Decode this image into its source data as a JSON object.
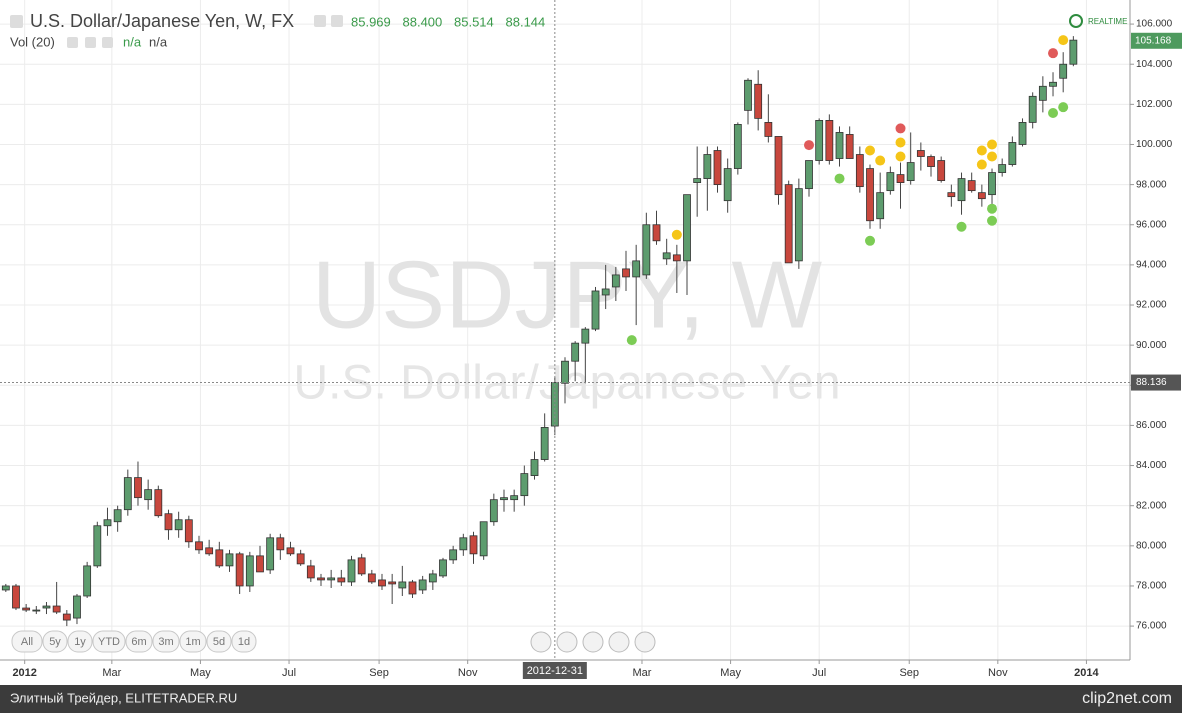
{
  "chart_data": {
    "type": "candlestick",
    "title": "U.S. Dollar/Japanese Yen, W, FX",
    "ohlc_labels": [
      "85.969",
      "88.400",
      "85.514",
      "88.144"
    ],
    "indicator": "Vol (20)",
    "indicator_values": [
      "n/a",
      "n/a"
    ],
    "watermark": "USDJPY, W",
    "watermark_subtitle": "U.S. Dollar/Japanese Yen",
    "realtime_label": "REALTIME",
    "range_buttons": [
      "All",
      "5y",
      "1y",
      "YTD",
      "6m",
      "3m",
      "1m",
      "5d",
      "1d"
    ],
    "footer_left": "Элитный Трейдер, ELITETRADER.RU",
    "footer_right": "clip2net.com",
    "up_color": "#5d9c6e",
    "down_color": "#c8473d",
    "grid": true,
    "xlim": [
      "2011-12-15",
      "2014-01-31"
    ],
    "ylim": [
      74.31,
      107.2
    ],
    "yticks": [
      {
        "value": 76,
        "label": "76.000"
      },
      {
        "value": 78,
        "label": "78.000"
      },
      {
        "value": 80,
        "label": "80.000"
      },
      {
        "value": 82,
        "label": "82.000"
      },
      {
        "value": 84,
        "label": "84.000"
      },
      {
        "value": 86,
        "label": "86.000"
      },
      {
        "value": 88,
        "label": "88.000"
      },
      {
        "value": 90,
        "label": "90.000"
      },
      {
        "value": 92,
        "label": "92.000"
      },
      {
        "value": 94,
        "label": "94.000"
      },
      {
        "value": 96,
        "label": "96.000"
      },
      {
        "value": 98,
        "label": "98.000"
      },
      {
        "value": 100,
        "label": "100.000"
      },
      {
        "value": 102,
        "label": "102.000"
      },
      {
        "value": 104,
        "label": "104.000"
      },
      {
        "value": 106,
        "label": "106.000"
      }
    ],
    "xticks": [
      {
        "value": "2012-01-01",
        "label": "2012"
      },
      {
        "value": "2012-03-01",
        "label": "Mar"
      },
      {
        "value": "2012-05-01",
        "label": "May"
      },
      {
        "value": "2012-07-01",
        "label": "Jul"
      },
      {
        "value": "2012-09-01",
        "label": "Sep"
      },
      {
        "value": "2012-11-01",
        "label": "Nov"
      },
      {
        "value": "2013-03-01",
        "label": "Mar"
      },
      {
        "value": "2013-05-01",
        "label": "May"
      },
      {
        "value": "2013-07-01",
        "label": "Jul"
      },
      {
        "value": "2013-09-01",
        "label": "Sep"
      },
      {
        "value": "2013-11-01",
        "label": "Nov"
      },
      {
        "value": "2014-01-01",
        "label": "2014"
      }
    ],
    "crosshair": {
      "date": "2012-12-31",
      "price": 88.136
    },
    "last_price": 105.168,
    "x": [
      "2011-12-19",
      "2011-12-26",
      "2012-01-02",
      "2012-01-09",
      "2012-01-16",
      "2012-01-23",
      "2012-01-30",
      "2012-02-06",
      "2012-02-13",
      "2012-02-20",
      "2012-02-27",
      "2012-03-05",
      "2012-03-12",
      "2012-03-19",
      "2012-03-26",
      "2012-04-02",
      "2012-04-09",
      "2012-04-16",
      "2012-04-23",
      "2012-04-30",
      "2012-05-07",
      "2012-05-14",
      "2012-05-21",
      "2012-05-28",
      "2012-06-04",
      "2012-06-11",
      "2012-06-18",
      "2012-06-25",
      "2012-07-02",
      "2012-07-09",
      "2012-07-16",
      "2012-07-23",
      "2012-07-30",
      "2012-08-06",
      "2012-08-13",
      "2012-08-20",
      "2012-08-27",
      "2012-09-03",
      "2012-09-10",
      "2012-09-17",
      "2012-09-24",
      "2012-10-01",
      "2012-10-08",
      "2012-10-15",
      "2012-10-22",
      "2012-10-29",
      "2012-11-05",
      "2012-11-12",
      "2012-11-19",
      "2012-11-26",
      "2012-12-03",
      "2012-12-10",
      "2012-12-17",
      "2012-12-24",
      "2012-12-31",
      "2013-01-07",
      "2013-01-14",
      "2013-01-21",
      "2013-01-28",
      "2013-02-04",
      "2013-02-11",
      "2013-02-18",
      "2013-02-25",
      "2013-03-04",
      "2013-03-11",
      "2013-03-18",
      "2013-03-25",
      "2013-04-01",
      "2013-04-08",
      "2013-04-15",
      "2013-04-22",
      "2013-04-29",
      "2013-05-06",
      "2013-05-13",
      "2013-05-20",
      "2013-05-27",
      "2013-06-03",
      "2013-06-10",
      "2013-06-17",
      "2013-06-24",
      "2013-07-01",
      "2013-07-08",
      "2013-07-15",
      "2013-07-22",
      "2013-07-29",
      "2013-08-05",
      "2013-08-12",
      "2013-08-19",
      "2013-08-26",
      "2013-09-02",
      "2013-09-09",
      "2013-09-16",
      "2013-09-23",
      "2013-09-30",
      "2013-10-07",
      "2013-10-14",
      "2013-10-21",
      "2013-10-28",
      "2013-11-04",
      "2013-11-11",
      "2013-11-18",
      "2013-11-25",
      "2013-12-02",
      "2013-12-09",
      "2013-12-16",
      "2013-12-23"
    ],
    "open": [
      77.8,
      78.0,
      76.9,
      76.8,
      76.9,
      77.0,
      76.6,
      76.4,
      77.5,
      79.0,
      81.0,
      81.2,
      81.8,
      83.4,
      82.3,
      82.8,
      81.6,
      80.8,
      81.3,
      80.2,
      79.9,
      79.8,
      79.0,
      79.6,
      78.0,
      79.5,
      78.8,
      80.4,
      79.9,
      79.6,
      79.0,
      78.4,
      78.3,
      78.4,
      78.2,
      79.4,
      78.6,
      78.3,
      78.2,
      77.9,
      78.2,
      77.8,
      78.2,
      78.5,
      79.3,
      79.8,
      80.5,
      79.5,
      81.2,
      82.3,
      82.3,
      82.5,
      83.5,
      84.3,
      85.969,
      88.1,
      89.2,
      90.1,
      90.8,
      92.5,
      92.9,
      93.8,
      93.4,
      93.5,
      96.0,
      94.3,
      94.5,
      94.2,
      98.1,
      98.3,
      99.7,
      97.2,
      98.8,
      101.7,
      103.0,
      101.1,
      100.4,
      98.0,
      94.2,
      97.8,
      99.2,
      101.2,
      99.3,
      100.5,
      99.5,
      98.8,
      96.3,
      97.7,
      98.5,
      98.2,
      99.7,
      99.4,
      99.2,
      97.6,
      97.2,
      98.2,
      97.6,
      97.5,
      98.6,
      99.0,
      100.0,
      101.1,
      102.2,
      102.9,
      103.3,
      104.0
    ],
    "high": [
      78.1,
      78.1,
      77.1,
      77.0,
      77.2,
      78.2,
      76.8,
      77.6,
      79.2,
      81.2,
      81.9,
      82.0,
      83.8,
      84.2,
      83.3,
      83.0,
      81.8,
      81.7,
      81.5,
      80.5,
      80.3,
      80.2,
      79.8,
      79.7,
      79.7,
      80.0,
      80.6,
      80.6,
      80.2,
      79.8,
      79.3,
      78.6,
      78.8,
      78.8,
      79.5,
      79.6,
      78.8,
      78.6,
      78.6,
      79.0,
      78.3,
      78.5,
      78.8,
      79.4,
      80.0,
      80.6,
      80.7,
      81.2,
      82.6,
      82.8,
      82.8,
      84.0,
      84.7,
      86.6,
      88.4,
      89.4,
      90.2,
      90.9,
      92.9,
      94.0,
      93.9,
      94.7,
      95.0,
      96.6,
      96.7,
      95.3,
      95.0,
      97.5,
      99.9,
      99.9,
      99.9,
      99.3,
      101.1,
      103.3,
      103.7,
      102.5,
      100.4,
      98.2,
      98.3,
      99.2,
      101.3,
      101.5,
      100.9,
      100.9,
      99.9,
      99.0,
      98.6,
      98.9,
      99.1,
      100.6,
      100.1,
      99.5,
      99.4,
      98.0,
      98.6,
      98.6,
      98.0,
      98.8,
      99.3,
      100.4,
      101.3,
      102.6,
      103.4,
      103.6,
      104.6,
      105.4
    ],
    "low": [
      77.7,
      76.8,
      76.7,
      76.6,
      76.6,
      76.6,
      76.0,
      76.1,
      77.4,
      78.9,
      80.5,
      80.7,
      81.5,
      82.0,
      81.8,
      81.4,
      80.3,
      80.4,
      79.9,
      79.6,
      79.5,
      78.9,
      78.7,
      77.6,
      77.7,
      78.7,
      78.6,
      79.3,
      79.5,
      79.0,
      78.2,
      78.0,
      77.9,
      78.0,
      78.0,
      78.5,
      78.1,
      77.8,
      77.1,
      77.5,
      77.4,
      77.6,
      77.8,
      78.4,
      79.1,
      79.5,
      79.1,
      79.3,
      81.0,
      81.7,
      81.7,
      82.0,
      83.3,
      84.2,
      85.514,
      87.1,
      88.2,
      88.1,
      90.7,
      91.8,
      92.2,
      92.7,
      91.0,
      93.3,
      95.0,
      94.0,
      92.6,
      92.5,
      96.4,
      96.7,
      97.6,
      96.6,
      98.5,
      101.0,
      100.7,
      100.1,
      97.0,
      94.1,
      93.8,
      97.4,
      99.0,
      99.0,
      98.9,
      99.3,
      97.6,
      95.8,
      95.8,
      97.5,
      96.8,
      98.0,
      98.7,
      98.4,
      98.1,
      96.9,
      96.5,
      97.6,
      96.9,
      97.0,
      98.4,
      98.9,
      99.9,
      100.8,
      101.6,
      102.4,
      102.6,
      103.9
    ],
    "close": [
      78.0,
      76.9,
      76.8,
      76.8,
      77.0,
      76.7,
      76.3,
      77.5,
      79.0,
      81.0,
      81.3,
      81.8,
      83.4,
      82.4,
      82.8,
      81.5,
      80.8,
      81.3,
      80.2,
      79.8,
      79.6,
      79.0,
      79.6,
      78.0,
      79.5,
      78.7,
      80.4,
      79.8,
      79.6,
      79.1,
      78.4,
      78.3,
      78.4,
      78.2,
      79.3,
      78.6,
      78.2,
      78.0,
      78.1,
      78.2,
      77.6,
      78.3,
      78.6,
      79.3,
      79.8,
      80.4,
      79.6,
      81.2,
      82.3,
      82.4,
      82.5,
      83.6,
      84.3,
      85.9,
      88.144,
      89.2,
      90.1,
      90.8,
      92.7,
      92.8,
      93.5,
      93.4,
      94.2,
      96.0,
      95.2,
      94.6,
      94.2,
      97.5,
      98.3,
      99.5,
      98.0,
      98.8,
      101.0,
      103.2,
      101.3,
      100.4,
      97.5,
      94.1,
      97.8,
      99.2,
      101.2,
      99.2,
      100.6,
      99.3,
      97.9,
      96.2,
      97.6,
      98.6,
      98.1,
      99.1,
      99.4,
      98.9,
      98.2,
      97.4,
      98.3,
      97.7,
      97.3,
      98.6,
      99.0,
      100.1,
      101.1,
      102.4,
      102.9,
      103.1,
      104.0,
      105.2
    ],
    "signals": [
      {
        "x": "2013-02-22",
        "value": 90.25,
        "color": "#7ccc55"
      },
      {
        "x": "2013-03-25",
        "value": 95.5,
        "color": "#f5c518"
      },
      {
        "x": "2013-06-24",
        "value": 99.97,
        "color": "#e05a5a"
      },
      {
        "x": "2013-07-15",
        "value": 98.3,
        "color": "#7ccc55"
      },
      {
        "x": "2013-08-05",
        "value": 99.7,
        "color": "#f5c518"
      },
      {
        "x": "2013-08-05",
        "value": 95.2,
        "color": "#7ccc55"
      },
      {
        "x": "2013-08-12",
        "value": 99.2,
        "color": "#f5c518"
      },
      {
        "x": "2013-08-26",
        "value": 100.8,
        "color": "#e05a5a"
      },
      {
        "x": "2013-08-26",
        "value": 100.1,
        "color": "#f5c518"
      },
      {
        "x": "2013-08-26",
        "value": 99.4,
        "color": "#f5c518"
      },
      {
        "x": "2013-10-07",
        "value": 95.9,
        "color": "#7ccc55"
      },
      {
        "x": "2013-10-21",
        "value": 99.7,
        "color": "#f5c518"
      },
      {
        "x": "2013-10-21",
        "value": 99.0,
        "color": "#f5c518"
      },
      {
        "x": "2013-10-28",
        "value": 100.0,
        "color": "#f5c518"
      },
      {
        "x": "2013-10-28",
        "value": 99.4,
        "color": "#f5c518"
      },
      {
        "x": "2013-10-28",
        "value": 96.8,
        "color": "#7ccc55"
      },
      {
        "x": "2013-10-28",
        "value": 96.2,
        "color": "#7ccc55"
      },
      {
        "x": "2013-12-09",
        "value": 104.55,
        "color": "#e05a5a"
      },
      {
        "x": "2013-12-16",
        "value": 105.2,
        "color": "#f5c518"
      },
      {
        "x": "2013-12-09",
        "value": 101.57,
        "color": "#7ccc55"
      },
      {
        "x": "2013-12-16",
        "value": 101.86,
        "color": "#7ccc55"
      }
    ]
  }
}
